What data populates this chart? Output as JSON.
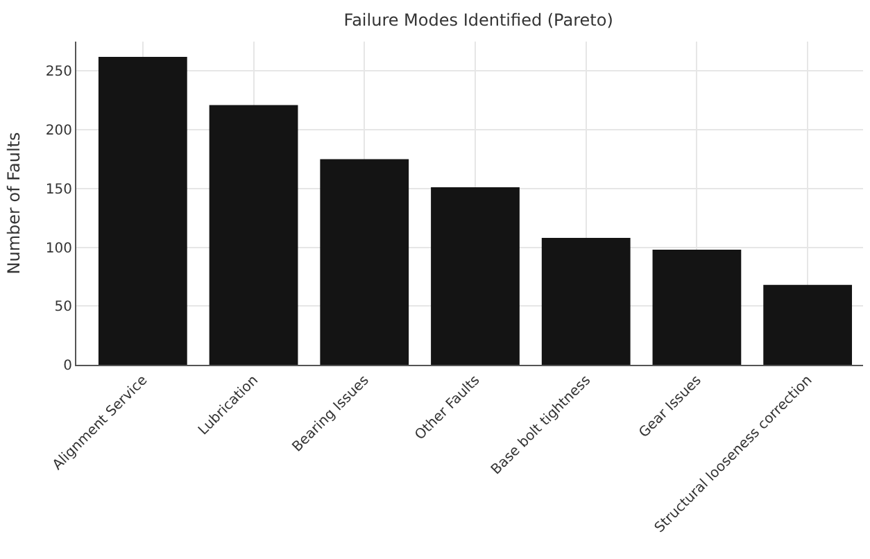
{
  "chart_data": {
    "type": "bar",
    "title": "Failure Modes Identified (Pareto)",
    "ylabel": "Number of Faults",
    "categories": [
      "Alignment Service",
      "Lubrication",
      "Bearing Issues",
      "Other Faults",
      "Base bolt tightness",
      "Gear Issues",
      "Structural looseness correction"
    ],
    "values": [
      262,
      221,
      175,
      151,
      108,
      98,
      68
    ],
    "color": "#141414",
    "ylim": [
      0,
      275
    ],
    "yticks": [
      0,
      50,
      100,
      150,
      200,
      250
    ],
    "grid": true
  }
}
